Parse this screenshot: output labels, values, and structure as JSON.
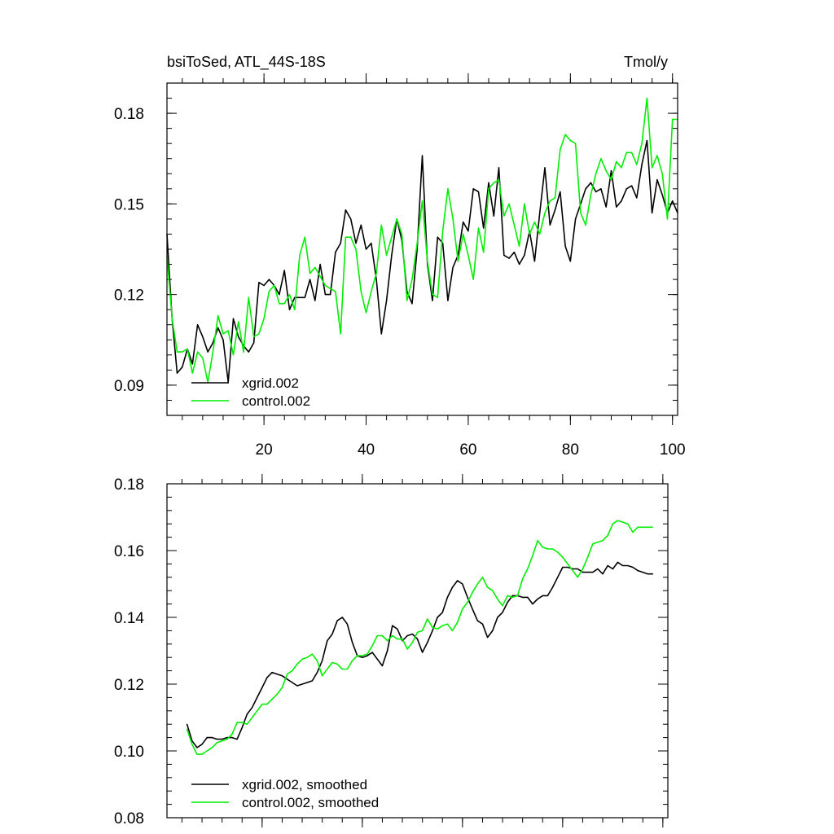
{
  "chart_data": [
    {
      "type": "line",
      "title_left": "bsiToSed, ATL_44S-18S",
      "title_right": "Tmol/y",
      "xlim": [
        1,
        101
      ],
      "ylim": [
        0.08,
        0.19
      ],
      "xticks": [
        20,
        40,
        60,
        80,
        100
      ],
      "yticks": [
        0.09,
        0.12,
        0.15,
        0.18
      ],
      "ytick_labels": [
        "0.09",
        "0.12",
        "0.15",
        "0.18"
      ],
      "xtick_labels": [
        "20",
        "40",
        "60",
        "80",
        "100"
      ],
      "grid": false,
      "legend_position": "bottom-left",
      "series": [
        {
          "name": "xgrid.002",
          "color": "#000000",
          "x": [
            1,
            2,
            3,
            4,
            5,
            6,
            7,
            8,
            9,
            10,
            11,
            12,
            13,
            14,
            15,
            16,
            17,
            18,
            19,
            20,
            21,
            22,
            23,
            24,
            25,
            26,
            27,
            28,
            29,
            30,
            31,
            32,
            33,
            34,
            35,
            36,
            37,
            38,
            39,
            40,
            41,
            42,
            43,
            44,
            45,
            46,
            47,
            48,
            49,
            50,
            51,
            52,
            53,
            54,
            55,
            56,
            57,
            58,
            59,
            60,
            61,
            62,
            63,
            64,
            65,
            66,
            67,
            68,
            69,
            70,
            71,
            72,
            73,
            74,
            75,
            76,
            77,
            78,
            79,
            80,
            81,
            82,
            83,
            84,
            85,
            86,
            87,
            88,
            89,
            90,
            91,
            92,
            93,
            94,
            95,
            96,
            97,
            98,
            99,
            100,
            101
          ],
          "values": [
            0.14,
            0.112,
            0.094,
            0.096,
            0.102,
            0.097,
            0.11,
            0.106,
            0.101,
            0.104,
            0.109,
            0.105,
            0.091,
            0.112,
            0.106,
            0.103,
            0.101,
            0.104,
            0.124,
            0.123,
            0.125,
            0.123,
            0.12,
            0.128,
            0.115,
            0.119,
            0.119,
            0.119,
            0.125,
            0.118,
            0.13,
            0.12,
            0.12,
            0.134,
            0.137,
            0.148,
            0.145,
            0.137,
            0.143,
            0.135,
            0.137,
            0.125,
            0.107,
            0.118,
            0.133,
            0.145,
            0.138,
            0.121,
            0.117,
            0.135,
            0.166,
            0.13,
            0.118,
            0.139,
            0.137,
            0.118,
            0.129,
            0.133,
            0.144,
            0.141,
            0.155,
            0.154,
            0.142,
            0.157,
            0.146,
            0.162,
            0.133,
            0.132,
            0.134,
            0.13,
            0.133,
            0.141,
            0.131,
            0.147,
            0.162,
            0.143,
            0.148,
            0.154,
            0.136,
            0.131,
            0.145,
            0.15,
            0.155,
            0.157,
            0.154,
            0.155,
            0.149,
            0.161,
            0.149,
            0.151,
            0.155,
            0.156,
            0.152,
            0.163,
            0.171,
            0.147,
            0.158,
            0.153,
            0.147,
            0.151,
            0.147
          ]
        },
        {
          "name": "control.002",
          "color": "#00ee00",
          "x": [
            1,
            2,
            3,
            4,
            5,
            6,
            7,
            8,
            9,
            10,
            11,
            12,
            13,
            14,
            15,
            16,
            17,
            18,
            19,
            20,
            21,
            22,
            23,
            24,
            25,
            26,
            27,
            28,
            29,
            30,
            31,
            32,
            33,
            34,
            35,
            36,
            37,
            38,
            39,
            40,
            41,
            42,
            43,
            44,
            45,
            46,
            47,
            48,
            49,
            50,
            51,
            52,
            53,
            54,
            55,
            56,
            57,
            58,
            59,
            60,
            61,
            62,
            63,
            64,
            65,
            66,
            67,
            68,
            69,
            70,
            71,
            72,
            73,
            74,
            75,
            76,
            77,
            78,
            79,
            80,
            81,
            82,
            83,
            84,
            85,
            86,
            87,
            88,
            89,
            90,
            91,
            92,
            93,
            94,
            95,
            96,
            97,
            98,
            99,
            100,
            101
          ],
          "values": [
            0.133,
            0.112,
            0.101,
            0.101,
            0.102,
            0.094,
            0.101,
            0.099,
            0.091,
            0.101,
            0.113,
            0.107,
            0.108,
            0.1,
            0.111,
            0.101,
            0.119,
            0.106,
            0.107,
            0.112,
            0.121,
            0.123,
            0.117,
            0.117,
            0.12,
            0.115,
            0.133,
            0.139,
            0.127,
            0.129,
            0.126,
            0.123,
            0.122,
            0.121,
            0.107,
            0.139,
            0.139,
            0.135,
            0.121,
            0.114,
            0.121,
            0.127,
            0.143,
            0.133,
            0.139,
            0.145,
            0.14,
            0.118,
            0.125,
            0.137,
            0.151,
            0.131,
            0.12,
            0.119,
            0.141,
            0.155,
            0.145,
            0.131,
            0.14,
            0.133,
            0.125,
            0.142,
            0.134,
            0.155,
            0.157,
            0.158,
            0.146,
            0.15,
            0.143,
            0.136,
            0.15,
            0.14,
            0.144,
            0.14,
            0.147,
            0.151,
            0.152,
            0.168,
            0.173,
            0.171,
            0.17,
            0.147,
            0.143,
            0.153,
            0.16,
            0.165,
            0.161,
            0.158,
            0.164,
            0.162,
            0.167,
            0.167,
            0.163,
            0.17,
            0.185,
            0.162,
            0.166,
            0.16,
            0.145,
            0.178,
            0.178
          ]
        }
      ]
    },
    {
      "type": "line",
      "xlim": [
        1,
        101
      ],
      "ylim": [
        0.08,
        0.18
      ],
      "xticks": [
        20,
        40,
        60,
        80,
        100
      ],
      "yticks": [
        0.08,
        0.1,
        0.12,
        0.14,
        0.16,
        0.18
      ],
      "ytick_labels": [
        "0.08",
        "0.10",
        "0.12",
        "0.14",
        "0.16",
        "0.18"
      ],
      "grid": false,
      "legend_position": "bottom-left",
      "series": [
        {
          "name": "xgrid.002, smoothed",
          "color": "#000000",
          "x": [
            5,
            6,
            7,
            8,
            9,
            10,
            11,
            12,
            13,
            14,
            15,
            16,
            17,
            18,
            19,
            20,
            21,
            22,
            23,
            24,
            25,
            26,
            27,
            28,
            29,
            30,
            31,
            32,
            33,
            34,
            35,
            36,
            37,
            38,
            39,
            40,
            41,
            42,
            43,
            44,
            45,
            46,
            47,
            48,
            49,
            50,
            51,
            52,
            53,
            54,
            55,
            56,
            57,
            58,
            59,
            60,
            61,
            62,
            63,
            64,
            65,
            66,
            67,
            68,
            69,
            70,
            71,
            72,
            73,
            74,
            75,
            76,
            77,
            78,
            79,
            80,
            81,
            82,
            83,
            84,
            85,
            86,
            87,
            88,
            89,
            90,
            91,
            92,
            93,
            94,
            95,
            96,
            97,
            98
          ],
          "values": [
            0.108,
            0.103,
            0.101,
            0.102,
            0.104,
            0.104,
            0.1035,
            0.1035,
            0.104,
            0.104,
            0.1035,
            0.107,
            0.111,
            0.113,
            0.116,
            0.119,
            0.122,
            0.1235,
            0.123,
            0.1225,
            0.1215,
            0.1205,
            0.1195,
            0.12,
            0.1205,
            0.121,
            0.1235,
            0.127,
            0.133,
            0.135,
            0.139,
            0.14,
            0.138,
            0.1325,
            0.1285,
            0.128,
            0.1285,
            0.1295,
            0.1275,
            0.1255,
            0.13,
            0.1375,
            0.1365,
            0.133,
            0.1345,
            0.135,
            0.1335,
            0.1295,
            0.1325,
            0.136,
            0.14,
            0.1415,
            0.146,
            0.149,
            0.151,
            0.15,
            0.146,
            0.1425,
            0.139,
            0.138,
            0.134,
            0.136,
            0.14,
            0.1415,
            0.1445,
            0.1465,
            0.1465,
            0.146,
            0.146,
            0.144,
            0.1455,
            0.1465,
            0.1465,
            0.149,
            0.152,
            0.155,
            0.155,
            0.1545,
            0.1545,
            0.1535,
            0.1535,
            0.1535,
            0.1545,
            0.153,
            0.1555,
            0.1545,
            0.1565,
            0.1555,
            0.1555,
            0.155,
            0.154,
            0.1535,
            0.153,
            0.153
          ]
        },
        {
          "name": "control.002, smoothed",
          "color": "#00ee00",
          "x": [
            5,
            6,
            7,
            8,
            9,
            10,
            11,
            12,
            13,
            14,
            15,
            16,
            17,
            18,
            19,
            20,
            21,
            22,
            23,
            24,
            25,
            26,
            27,
            28,
            29,
            30,
            31,
            32,
            33,
            34,
            35,
            36,
            37,
            38,
            39,
            40,
            41,
            42,
            43,
            44,
            45,
            46,
            47,
            48,
            49,
            50,
            51,
            52,
            53,
            54,
            55,
            56,
            57,
            58,
            59,
            60,
            61,
            62,
            63,
            64,
            65,
            66,
            67,
            68,
            69,
            70,
            71,
            72,
            73,
            74,
            75,
            76,
            77,
            78,
            79,
            80,
            81,
            82,
            83,
            84,
            85,
            86,
            87,
            88,
            89,
            90,
            91,
            92,
            93,
            94,
            95,
            96,
            97,
            98
          ],
          "values": [
            0.1065,
            0.102,
            0.099,
            0.099,
            0.1,
            0.101,
            0.1025,
            0.103,
            0.1035,
            0.105,
            0.1085,
            0.1085,
            0.108,
            0.11,
            0.112,
            0.114,
            0.114,
            0.1155,
            0.117,
            0.119,
            0.123,
            0.124,
            0.126,
            0.1275,
            0.128,
            0.129,
            0.127,
            0.1225,
            0.1245,
            0.1265,
            0.126,
            0.1245,
            0.1245,
            0.127,
            0.1285,
            0.1285,
            0.129,
            0.1315,
            0.1345,
            0.1345,
            0.133,
            0.1345,
            0.1335,
            0.1335,
            0.1305,
            0.1325,
            0.1355,
            0.136,
            0.1395,
            0.137,
            0.1365,
            0.1375,
            0.138,
            0.136,
            0.1385,
            0.1425,
            0.1445,
            0.1475,
            0.15,
            0.152,
            0.149,
            0.148,
            0.1455,
            0.1435,
            0.1465,
            0.146,
            0.1465,
            0.1515,
            0.1545,
            0.1585,
            0.163,
            0.161,
            0.1605,
            0.1605,
            0.1595,
            0.158,
            0.156,
            0.154,
            0.152,
            0.1545,
            0.158,
            0.162,
            0.1625,
            0.163,
            0.1645,
            0.168,
            0.169,
            0.1685,
            0.168,
            0.1655,
            0.167,
            0.167,
            0.167,
            0.167
          ]
        }
      ]
    }
  ]
}
